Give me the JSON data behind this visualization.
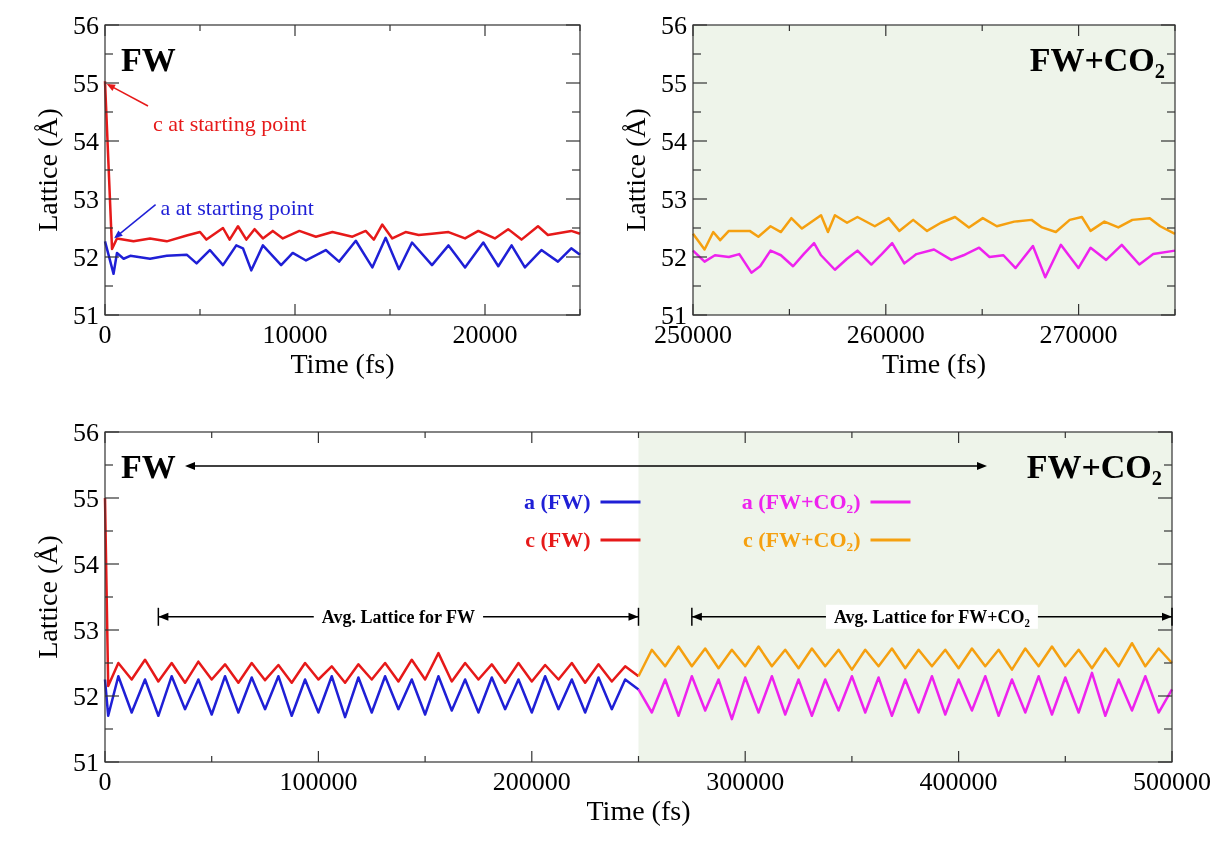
{
  "chart_data": [
    {
      "type": "line",
      "title": "FW",
      "xlabel": "Time (fs)",
      "ylabel": "Lattice (Å)",
      "xlim": [
        0,
        25000
      ],
      "xticks": [
        0,
        {
          "value": 5000,
          "label": null
        },
        10000,
        {
          "value": 15000,
          "label": null
        },
        20000,
        {
          "value": 25000,
          "label": null
        }
      ],
      "ylim": [
        51,
        56
      ],
      "yticks": [
        51,
        {
          "value": 51.5,
          "label": null
        },
        52,
        {
          "value": 52.5,
          "label": null
        },
        53,
        {
          "value": 53.5,
          "label": null
        },
        54,
        {
          "value": 54.5,
          "label": null
        },
        55,
        {
          "value": 55.5,
          "label": null
        },
        56
      ],
      "series": [
        {
          "color": "#1f1fd6",
          "x": [
            0,
            450,
            630,
            980,
            1330,
            2370,
            3250,
            4300,
            4820,
            5520,
            6210,
            6910,
            7260,
            7700,
            8310,
            9270,
            9880,
            10580,
            11620,
            12320,
            13200,
            14070,
            14770,
            15470,
            16160,
            17210,
            18080,
            18950,
            19910,
            20700,
            21400,
            22100,
            22970,
            23840,
            24540,
            25000
          ],
          "values": [
            52.27,
            51.71,
            52.07,
            51.97,
            52.02,
            51.97,
            52.02,
            52.04,
            51.89,
            52.12,
            51.86,
            52.2,
            52.15,
            51.77,
            52.2,
            51.86,
            52.07,
            51.94,
            52.12,
            51.92,
            52.28,
            51.82,
            52.33,
            51.79,
            52.25,
            51.86,
            52.2,
            51.82,
            52.25,
            51.84,
            52.2,
            51.82,
            52.12,
            51.92,
            52.15,
            52.04
          ]
        },
        {
          "color": "#e61919",
          "x": [
            0,
            370,
            630,
            1500,
            2370,
            3250,
            4300,
            5000,
            5340,
            6210,
            6560,
            7000,
            7440,
            7870,
            8310,
            8830,
            9360,
            10230,
            11100,
            11970,
            13020,
            13720,
            14150,
            14590,
            15120,
            15820,
            16510,
            17210,
            18080,
            18950,
            19650,
            20520,
            21220,
            21920,
            22790,
            23310,
            24540,
            25000
          ],
          "values": [
            55.03,
            52.14,
            52.32,
            52.27,
            52.32,
            52.27,
            52.37,
            52.43,
            52.3,
            52.5,
            52.3,
            52.53,
            52.3,
            52.48,
            52.32,
            52.45,
            52.32,
            52.45,
            52.35,
            52.43,
            52.35,
            52.45,
            52.3,
            52.56,
            52.32,
            52.43,
            52.38,
            52.4,
            52.43,
            52.32,
            52.45,
            52.32,
            52.48,
            52.3,
            52.53,
            52.38,
            52.45,
            52.4
          ]
        }
      ],
      "annotations": [
        {
          "text": "a at starting point",
          "x": 400,
          "y": 52.3
        },
        {
          "text": "c at starting point",
          "x": 0,
          "y": 55
        }
      ]
    },
    {
      "type": "line",
      "title": "FW+CO₂",
      "xlabel": "Time (fs)",
      "ylabel": "Lattice (Å)",
      "xlim": [
        250000,
        275000
      ],
      "xticks": [
        250000,
        {
          "value": 255000,
          "label": null
        },
        260000,
        {
          "value": 265000,
          "label": null
        },
        270000,
        {
          "value": 275000,
          "label": null
        }
      ],
      "ylim": [
        51,
        56
      ],
      "yticks": [
        51,
        {
          "value": 51.5,
          "label": null
        },
        52,
        {
          "value": 52.5,
          "label": null
        },
        53,
        {
          "value": 53.5,
          "label": null
        },
        54,
        {
          "value": 54.5,
          "label": null
        },
        55,
        {
          "value": 55.5,
          "label": null
        },
        56
      ],
      "bands": [
        {
          "axis": "x",
          "from": 250000,
          "to": 275000,
          "color": "#eef4ea"
        }
      ],
      "series": [
        {
          "color": "#ee22ee",
          "x": [
            250000,
            250600,
            251140,
            251860,
            252400,
            253030,
            253480,
            254020,
            254560,
            255190,
            255740,
            256280,
            256640,
            257360,
            257990,
            258530,
            259250,
            259790,
            260330,
            260960,
            261590,
            262500,
            263400,
            264030,
            264840,
            265380,
            266100,
            266730,
            267630,
            268270,
            269080,
            269990,
            270620,
            271430,
            272240,
            273150,
            273870,
            275000
          ],
          "values": [
            52.11,
            51.92,
            52.03,
            52.0,
            52.05,
            51.73,
            51.84,
            52.11,
            52.03,
            51.84,
            52.05,
            52.24,
            52.03,
            51.78,
            51.97,
            52.11,
            51.87,
            52.05,
            52.24,
            51.89,
            52.05,
            52.13,
            51.95,
            52.03,
            52.16,
            52.0,
            52.03,
            51.81,
            52.19,
            51.65,
            52.21,
            51.81,
            52.16,
            51.95,
            52.21,
            51.87,
            52.05,
            52.11
          ]
        },
        {
          "color": "#f5a010",
          "x": [
            250000,
            250600,
            251050,
            251410,
            251860,
            252940,
            253390,
            254020,
            254560,
            255100,
            255650,
            256640,
            257000,
            257360,
            257990,
            258530,
            259430,
            260150,
            260700,
            261420,
            262140,
            262860,
            263590,
            264310,
            265030,
            265760,
            266660,
            267560,
            268100,
            268820,
            269540,
            270170,
            270620,
            271340,
            272060,
            272790,
            273690,
            274230,
            275000
          ],
          "values": [
            52.4,
            52.13,
            52.43,
            52.29,
            52.45,
            52.45,
            52.35,
            52.53,
            52.43,
            52.67,
            52.49,
            52.72,
            52.43,
            52.72,
            52.59,
            52.69,
            52.53,
            52.67,
            52.45,
            52.64,
            52.45,
            52.59,
            52.69,
            52.51,
            52.67,
            52.53,
            52.61,
            52.64,
            52.51,
            52.43,
            52.64,
            52.69,
            52.45,
            52.61,
            52.51,
            52.64,
            52.67,
            52.53,
            52.4
          ]
        }
      ]
    },
    {
      "type": "line",
      "xlabel": "Time (fs)",
      "ylabel": "Lattice (Å)",
      "legend": "top",
      "xlim": [
        0,
        500000
      ],
      "xticks": [
        0,
        {
          "value": 50000,
          "label": null
        },
        100000,
        {
          "value": 150000,
          "label": null
        },
        200000,
        {
          "value": 250000,
          "label": null
        },
        300000,
        {
          "value": 350000,
          "label": null
        },
        400000,
        {
          "value": 450000,
          "label": null
        },
        500000
      ],
      "ylim": [
        51,
        56
      ],
      "yticks": [
        51,
        {
          "value": 51.5,
          "label": null
        },
        52,
        {
          "value": 52.5,
          "label": null
        },
        53,
        {
          "value": 53.5,
          "label": null
        },
        54,
        {
          "value": 54.5,
          "label": null
        },
        55,
        {
          "value": 55.5,
          "label": null
        },
        56
      ],
      "bands": [
        {
          "axis": "x",
          "from": 250000,
          "to": 500000,
          "color": "#eef4ea"
        }
      ],
      "series": [
        {
          "name": "a (FW)",
          "color": "#1f1fd6",
          "x": [
            0,
            1500,
            6250,
            12500,
            18750,
            25000,
            31250,
            37500,
            43750,
            50000,
            56250,
            62500,
            68750,
            75000,
            81250,
            87500,
            93750,
            100000,
            106250,
            112500,
            118750,
            125000,
            131250,
            137500,
            143750,
            150000,
            156250,
            162500,
            168750,
            175000,
            181250,
            187500,
            193750,
            200000,
            206250,
            212500,
            218750,
            225000,
            231250,
            237500,
            243750,
            250000
          ],
          "values": [
            52.25,
            51.7,
            52.3,
            51.75,
            52.25,
            51.7,
            52.3,
            51.8,
            52.25,
            51.72,
            52.3,
            51.75,
            52.28,
            51.8,
            52.3,
            51.7,
            52.25,
            51.75,
            52.3,
            51.68,
            52.28,
            51.75,
            52.3,
            51.8,
            52.25,
            51.72,
            52.3,
            51.78,
            52.25,
            51.75,
            52.28,
            51.8,
            52.25,
            51.75,
            52.3,
            51.8,
            52.25,
            51.75,
            52.28,
            51.8,
            52.25,
            52.1
          ]
        },
        {
          "name": "c (FW)",
          "color": "#e61919",
          "x": [
            0,
            1500,
            6250,
            12500,
            18750,
            25000,
            31250,
            37500,
            43750,
            50000,
            56250,
            62500,
            68750,
            75000,
            81250,
            87500,
            93750,
            100000,
            106250,
            112500,
            118750,
            125000,
            131250,
            137500,
            143750,
            150000,
            156250,
            162500,
            168750,
            175000,
            181250,
            187500,
            193750,
            200000,
            206250,
            212500,
            218750,
            225000,
            231250,
            237500,
            243750,
            250000
          ],
          "values": [
            55.0,
            52.15,
            52.5,
            52.25,
            52.55,
            52.22,
            52.5,
            52.2,
            52.52,
            52.25,
            52.48,
            52.2,
            52.5,
            52.24,
            52.47,
            52.2,
            52.5,
            52.25,
            52.45,
            52.2,
            52.48,
            52.25,
            52.5,
            52.22,
            52.55,
            52.25,
            52.65,
            52.22,
            52.5,
            52.25,
            52.48,
            52.2,
            52.5,
            52.22,
            52.47,
            52.25,
            52.5,
            52.2,
            52.48,
            52.22,
            52.45,
            52.3
          ]
        },
        {
          "name": "a (FW+CO₂)",
          "color": "#ee22ee",
          "x": [
            250000,
            256250,
            262500,
            268750,
            275000,
            281250,
            287500,
            293750,
            300000,
            306250,
            312500,
            318750,
            325000,
            331250,
            337500,
            343750,
            350000,
            356250,
            362500,
            368750,
            375000,
            381250,
            387500,
            393750,
            400000,
            406250,
            412500,
            418750,
            425000,
            431250,
            437500,
            443750,
            450000,
            456250,
            462500,
            468750,
            475000,
            481250,
            487500,
            493750,
            500000
          ],
          "values": [
            52.1,
            51.75,
            52.25,
            51.7,
            52.3,
            51.78,
            52.25,
            51.65,
            52.28,
            51.75,
            52.3,
            51.72,
            52.25,
            51.7,
            52.25,
            51.78,
            52.3,
            51.75,
            52.28,
            51.7,
            52.25,
            51.75,
            52.3,
            51.72,
            52.25,
            51.78,
            52.3,
            51.7,
            52.25,
            51.75,
            52.3,
            51.72,
            52.28,
            51.75,
            52.35,
            51.7,
            52.25,
            51.78,
            52.3,
            51.75,
            52.1
          ]
        },
        {
          "name": "c (FW+CO₂)",
          "color": "#f5a010",
          "x": [
            250000,
            256250,
            262500,
            268750,
            275000,
            281250,
            287500,
            293750,
            300000,
            306250,
            312500,
            318750,
            325000,
            331250,
            337500,
            343750,
            350000,
            356250,
            362500,
            368750,
            375000,
            381250,
            387500,
            393750,
            400000,
            406250,
            412500,
            418750,
            425000,
            431250,
            437500,
            443750,
            450000,
            456250,
            462500,
            468750,
            475000,
            481250,
            487500,
            493750,
            500000
          ],
          "values": [
            52.3,
            52.7,
            52.45,
            52.75,
            52.45,
            52.72,
            52.42,
            52.7,
            52.45,
            52.75,
            52.45,
            52.7,
            52.42,
            52.72,
            52.45,
            52.7,
            52.4,
            52.7,
            52.45,
            52.72,
            52.42,
            52.7,
            52.45,
            52.7,
            52.42,
            52.72,
            52.45,
            52.7,
            52.4,
            52.72,
            52.45,
            52.75,
            52.45,
            52.7,
            52.42,
            52.72,
            52.45,
            52.8,
            52.45,
            52.72,
            52.5
          ]
        }
      ],
      "annotations": [
        "FW",
        "FW+CO₂",
        "Avg. Lattice for FW",
        "Avg. Lattice for FW+CO₂"
      ]
    }
  ]
}
